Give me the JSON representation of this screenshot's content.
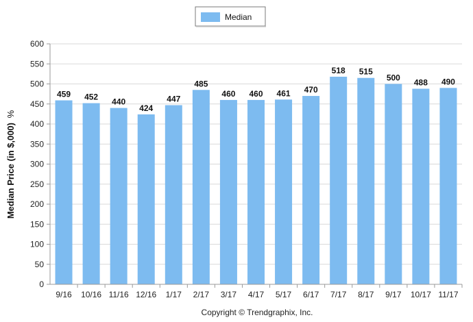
{
  "chart_data": {
    "type": "bar",
    "categories": [
      "9/16",
      "10/16",
      "11/16",
      "12/16",
      "1/17",
      "2/17",
      "3/17",
      "4/17",
      "5/17",
      "6/17",
      "7/17",
      "8/17",
      "9/17",
      "10/17",
      "11/17"
    ],
    "series": [
      {
        "name": "Median",
        "values": [
          459,
          452,
          440,
          424,
          447,
          485,
          460,
          460,
          461,
          470,
          518,
          515,
          500,
          488,
          490
        ]
      }
    ],
    "ylabel": "Median Price (in $,000)",
    "ylabel_suffix": "%",
    "ylim": [
      0,
      600
    ],
    "yticks": [
      0,
      50,
      100,
      150,
      200,
      250,
      300,
      350,
      400,
      450,
      500,
      550,
      600
    ],
    "grid": true,
    "legend": "top-center",
    "bar_color": "#7dbbf0",
    "grid_color": "#d9d9d9"
  },
  "footer": {
    "copyright": "Copyright © Trendgraphix, Inc."
  }
}
